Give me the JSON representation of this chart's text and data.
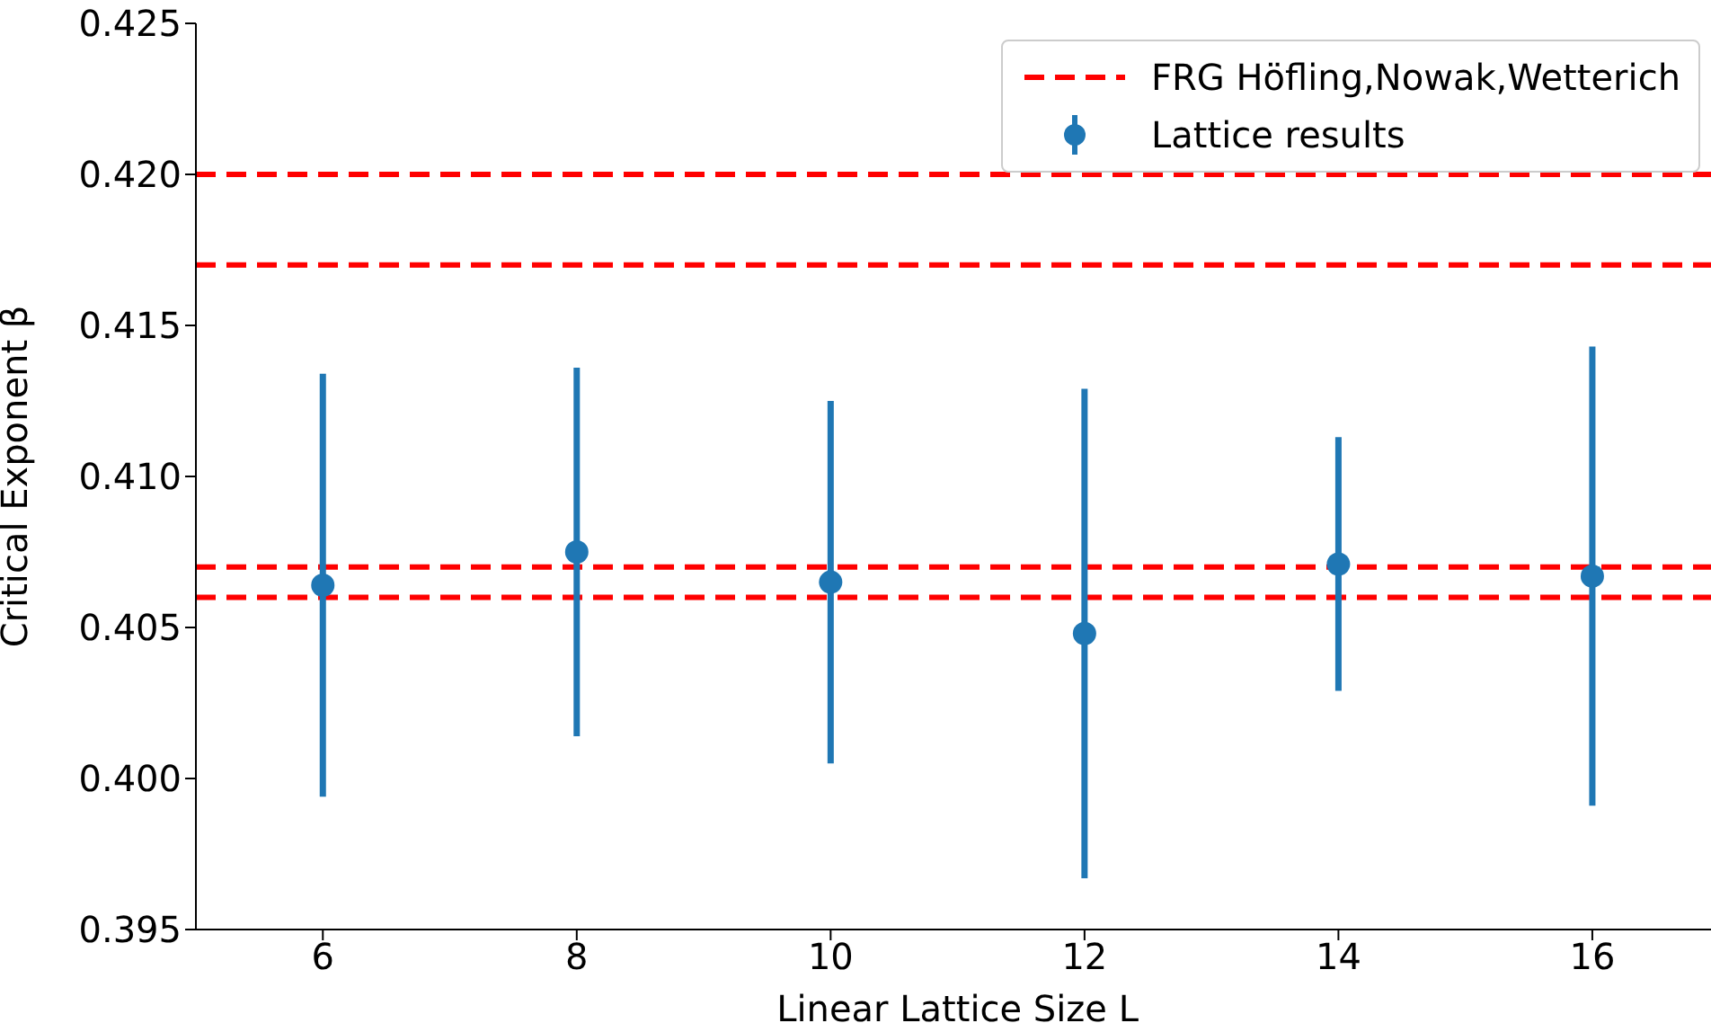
{
  "chart_data": {
    "type": "scatter",
    "xlabel": "Linear Lattice Size L",
    "ylabel": "Critical Exponent β",
    "x": [
      6,
      8,
      10,
      12,
      14,
      16
    ],
    "series": [
      {
        "name": "Lattice results",
        "color": "#1f77b4",
        "values": [
          0.4064,
          0.4075,
          0.4065,
          0.4048,
          0.4071,
          0.4067
        ],
        "errors": [
          0.007,
          0.0061,
          0.006,
          0.0081,
          0.0042,
          0.0076
        ]
      }
    ],
    "ref_lines": [
      {
        "axis": "y",
        "value": 0.42,
        "label": "FRG Höfling,Nowak,Wetterich",
        "color": "#ff0000",
        "line_style": "dashed"
      },
      {
        "axis": "y",
        "value": 0.417,
        "color": "#ff0000",
        "line_style": "dashed"
      },
      {
        "axis": "y",
        "value": 0.407,
        "color": "#ff0000",
        "line_style": "dashed"
      },
      {
        "axis": "y",
        "value": 0.406,
        "color": "#ff0000",
        "line_style": "dashed"
      }
    ],
    "xlim": [
      5,
      17
    ],
    "xticks": [
      6,
      8,
      10,
      12,
      14,
      16
    ],
    "ylim": [
      0.395,
      0.425
    ],
    "yticks": [
      0.395,
      {
        "value": 0.4,
        "label": "0.400"
      },
      0.405,
      {
        "value": 0.41,
        "label": "0.410"
      },
      0.415,
      {
        "value": 0.42,
        "label": "0.420"
      },
      0.425
    ],
    "marker": "circle",
    "grid": false,
    "legend": "top right"
  }
}
